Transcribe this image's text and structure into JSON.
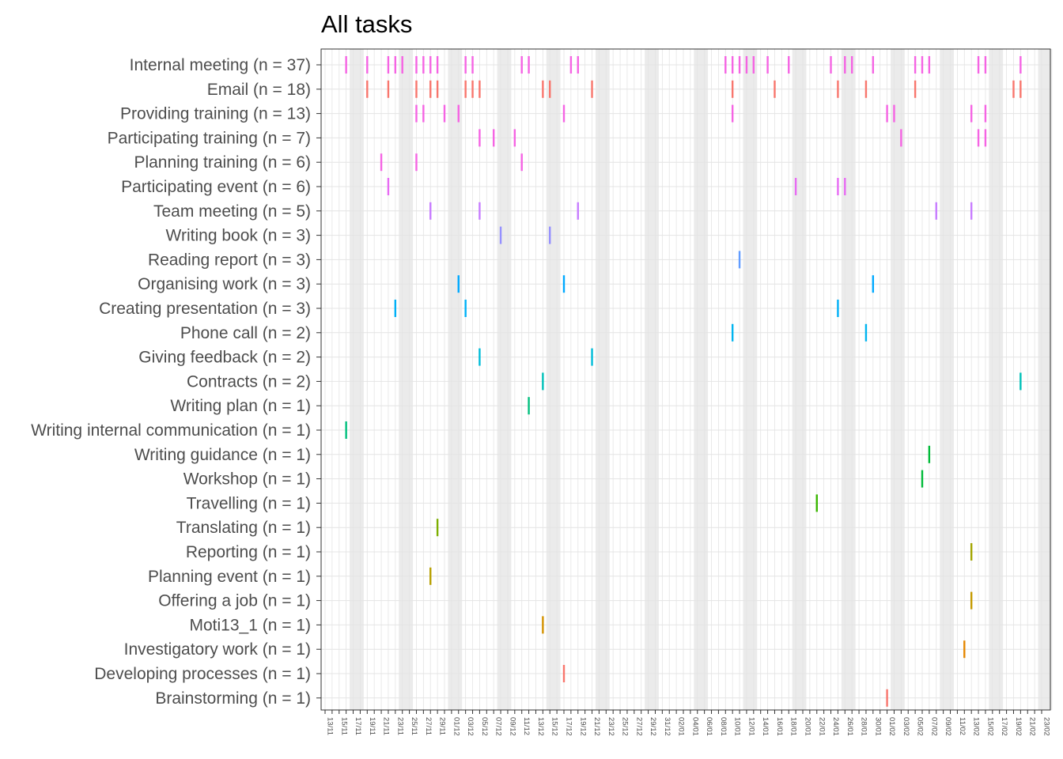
{
  "chart_data": {
    "type": "timeline",
    "title": "All tasks",
    "xlabel": "",
    "ylabel": "",
    "x_unit": "date",
    "x_start": "13/11",
    "x_end": "23/02",
    "x_tick_labels": [
      "13/11",
      "15/11",
      "17/11",
      "19/11",
      "21/11",
      "23/11",
      "25/11",
      "27/11",
      "29/11",
      "01/12",
      "03/12",
      "05/12",
      "07/12",
      "09/12",
      "11/12",
      "13/12",
      "15/12",
      "17/12",
      "19/12",
      "21/12",
      "23/12",
      "25/12",
      "27/12",
      "29/12",
      "31/12",
      "02/01",
      "04/01",
      "06/01",
      "08/01",
      "10/01",
      "12/01",
      "14/01",
      "16/01",
      "18/01",
      "20/01",
      "22/01",
      "24/01",
      "26/01",
      "28/01",
      "30/01",
      "01/02",
      "03/02",
      "05/02",
      "07/02",
      "09/02",
      "11/02",
      "13/02",
      "15/02",
      "17/02",
      "19/02",
      "21/02",
      "23/02"
    ],
    "weekend_shading": true,
    "grid": true,
    "legend": "none",
    "categories": [
      "Internal meeting (n = 37)",
      "Email (n = 18)",
      "Providing training (n = 13)",
      "Participating training (n = 7)",
      "Planning training (n = 6)",
      "Participating event (n = 6)",
      "Team meeting (n = 5)",
      "Writing book (n = 3)",
      "Reading report (n = 3)",
      "Organising work (n = 3)",
      "Creating presentation (n = 3)",
      "Phone call (n = 2)",
      "Giving feedback (n = 2)",
      "Contracts (n = 2)",
      "Writing plan (n = 1)",
      "Writing internal communication (n = 1)",
      "Writing guidance (n = 1)",
      "Workshop (n = 1)",
      "Travelling (n = 1)",
      "Translating (n = 1)",
      "Reporting (n = 1)",
      "Planning event (n = 1)",
      "Offering a job (n = 1)",
      "Moti13_1 (n = 1)",
      "Investigatory work (n = 1)",
      "Developing processes (n = 1)",
      "Brainstorming (n = 1)"
    ],
    "colors": [
      "#F8766D",
      "#F8766D",
      "#F8766D",
      "#F8766D",
      "#F8766D",
      "#F8766D",
      "#F8766D",
      "#C77CFF",
      "#619CFF",
      "#00A9FF",
      "#00B0F6",
      "#00B4EF",
      "#00BCD8",
      "#00C0B8",
      "#00BF7D",
      "#00BA38",
      "#00BE67",
      "#00C08B",
      "#7CAE00",
      "#7CAE00",
      "#B79F00",
      "#B79F00",
      "#D39200",
      "#D39200",
      "#E58700",
      "#F8766D",
      "#F8766D"
    ],
    "tasks": [
      {
        "category": "Internal meeting (n = 37)",
        "color": "#F564E3",
        "dates": [
          "2018-11-16",
          "2018-11-19",
          "2018-11-22",
          "2018-11-23",
          "2018-11-24",
          "2018-11-26",
          "2018-11-27",
          "2018-11-28",
          "2018-11-29",
          "2018-12-03",
          "2018-12-04",
          "2018-12-11",
          "2018-12-12",
          "2018-12-18",
          "2018-12-19",
          "2019-01-09",
          "2019-01-10",
          "2019-01-11",
          "2019-01-12",
          "2019-01-13",
          "2019-01-15",
          "2019-01-18",
          "2019-01-24",
          "2019-01-26",
          "2019-01-27",
          "2019-01-30",
          "2019-02-05",
          "2019-02-06",
          "2019-02-07",
          "2019-02-14",
          "2019-02-15",
          "2019-02-20"
        ]
      },
      {
        "category": "Email (n = 18)",
        "color": "#F8766D",
        "dates": [
          "2018-11-19",
          "2018-11-22",
          "2018-11-26",
          "2018-11-28",
          "2018-11-29",
          "2018-12-03",
          "2018-12-04",
          "2018-12-05",
          "2018-12-14",
          "2018-12-15",
          "2018-12-21",
          "2019-01-10",
          "2019-01-16",
          "2019-01-25",
          "2019-01-29",
          "2019-02-05",
          "2019-02-19",
          "2019-02-20"
        ]
      },
      {
        "category": "Providing training (n = 13)",
        "color": "#F564E3",
        "dates": [
          "2018-11-26",
          "2018-11-27",
          "2018-11-30",
          "2018-12-02",
          "2018-12-17",
          "2019-01-10",
          "2019-02-01",
          "2019-02-02",
          "2019-02-13",
          "2019-02-15"
        ]
      },
      {
        "category": "Participating training (n = 7)",
        "color": "#F564E3",
        "dates": [
          "2018-12-05",
          "2018-12-07",
          "2018-12-10",
          "2019-02-03",
          "2019-02-14",
          "2019-02-15"
        ]
      },
      {
        "category": "Planning training (n = 6)",
        "color": "#F564E3",
        "dates": [
          "2018-11-21",
          "2018-11-26",
          "2018-12-11"
        ]
      },
      {
        "category": "Participating event (n = 6)",
        "color": "#E76BF3",
        "dates": [
          "2018-11-22",
          "2019-01-19",
          "2019-01-25",
          "2019-01-26"
        ]
      },
      {
        "category": "Team meeting (n = 5)",
        "color": "#C77CFF",
        "dates": [
          "2018-11-28",
          "2018-12-05",
          "2018-12-19",
          "2019-02-08",
          "2019-02-13"
        ]
      },
      {
        "category": "Writing book (n = 3)",
        "color": "#9590FF",
        "dates": [
          "2018-12-08",
          "2018-12-15"
        ]
      },
      {
        "category": "Reading report (n = 3)",
        "color": "#619CFF",
        "dates": [
          "2019-01-11"
        ]
      },
      {
        "category": "Organising work (n = 3)",
        "color": "#00A9FF",
        "dates": [
          "2018-12-02",
          "2018-12-17",
          "2019-01-30"
        ]
      },
      {
        "category": "Creating presentation (n = 3)",
        "color": "#00B0F6",
        "dates": [
          "2018-11-23",
          "2018-12-03",
          "2019-01-25"
        ]
      },
      {
        "category": "Phone call (n = 2)",
        "color": "#00B4EF",
        "dates": [
          "2019-01-10",
          "2019-01-29"
        ]
      },
      {
        "category": "Giving feedback (n = 2)",
        "color": "#00BCD8",
        "dates": [
          "2018-12-05",
          "2018-12-21"
        ]
      },
      {
        "category": "Contracts (n = 2)",
        "color": "#00C0B8",
        "dates": [
          "2018-12-14",
          "2019-02-20"
        ]
      },
      {
        "category": "Writing plan (n = 1)",
        "color": "#00BF7D",
        "dates": [
          "2018-12-12"
        ]
      },
      {
        "category": "Writing internal communication (n = 1)",
        "color": "#00BF7D",
        "dates": [
          "2018-11-16"
        ]
      },
      {
        "category": "Writing guidance (n = 1)",
        "color": "#00BA38",
        "dates": [
          "2019-02-07"
        ]
      },
      {
        "category": "Workshop (n = 1)",
        "color": "#00BA38",
        "dates": [
          "2019-02-06"
        ]
      },
      {
        "category": "Travelling (n = 1)",
        "color": "#39B600",
        "dates": [
          "2019-01-22"
        ]
      },
      {
        "category": "Translating (n = 1)",
        "color": "#7CAE00",
        "dates": [
          "2018-11-29"
        ]
      },
      {
        "category": "Reporting (n = 1)",
        "color": "#A3A500",
        "dates": [
          "2019-02-13"
        ]
      },
      {
        "category": "Planning event (n = 1)",
        "color": "#B79F00",
        "dates": [
          "2018-11-28"
        ]
      },
      {
        "category": "Offering a job (n = 1)",
        "color": "#C49A00",
        "dates": [
          "2019-02-13"
        ]
      },
      {
        "category": "Moti13_1 (n = 1)",
        "color": "#D39200",
        "dates": [
          "2018-12-14"
        ]
      },
      {
        "category": "Investigatory work (n = 1)",
        "color": "#E58700",
        "dates": [
          "2019-02-12"
        ]
      },
      {
        "category": "Developing processes (n = 1)",
        "color": "#F8766D",
        "dates": [
          "2018-12-17"
        ]
      },
      {
        "category": "Brainstorming (n = 1)",
        "color": "#F8766D",
        "dates": [
          "2019-02-01"
        ]
      }
    ]
  }
}
